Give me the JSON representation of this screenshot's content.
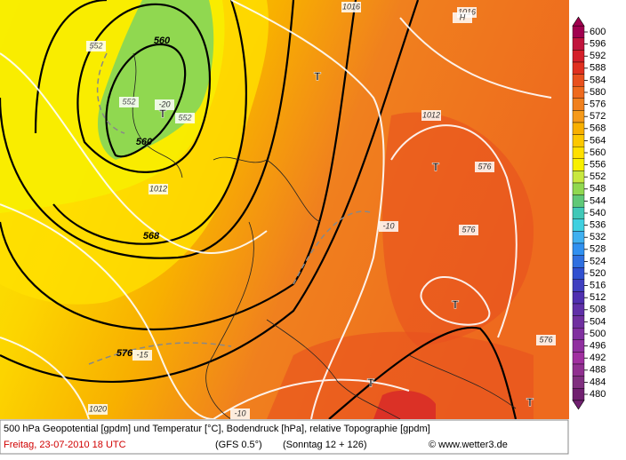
{
  "legend": {
    "levels": [
      600,
      596,
      592,
      588,
      584,
      580,
      576,
      572,
      568,
      564,
      560,
      556,
      552,
      548,
      544,
      540,
      536,
      532,
      528,
      524,
      520,
      516,
      512,
      508,
      504,
      500,
      496,
      492,
      488,
      484,
      480
    ],
    "colors": [
      "#a0004f",
      "#c0143c",
      "#d4202a",
      "#e03020",
      "#e8501e",
      "#ee6a1e",
      "#f0801e",
      "#f59a1a",
      "#f8b000",
      "#fcc800",
      "#ffe000",
      "#f8f000",
      "#c8e840",
      "#90d850",
      "#60c878",
      "#40c8b8",
      "#40d0e0",
      "#40b0f0",
      "#3090f0",
      "#3070e0",
      "#3050d0",
      "#4040c0",
      "#5030b0",
      "#6030a8",
      "#7030a0",
      "#8030a0",
      "#9030a0",
      "#a030a0",
      "#903090",
      "#803080",
      "#702070"
    ]
  },
  "map_labels": [
    "560",
    "560",
    "568",
    "576",
    "1016",
    "1016",
    "1012",
    "1012",
    "1020",
    "-20",
    "-15",
    "-10",
    "-10",
    "552",
    "552",
    "552",
    "576",
    "576",
    "576",
    "T",
    "T",
    "T",
    "T",
    "T",
    "T",
    "H"
  ],
  "footer": {
    "description": "500 hPa Geopotential [gpdm] und Temperatur [°C], Bodendruck [hPa], relative Topographie [gpdm]",
    "date": "Freitag, 23-07-2010   18 UTC",
    "model": "(GFS 0.5°)",
    "forecast": "(Sonntag 12 + 126)",
    "copyright": "© www.wetter3.de"
  }
}
